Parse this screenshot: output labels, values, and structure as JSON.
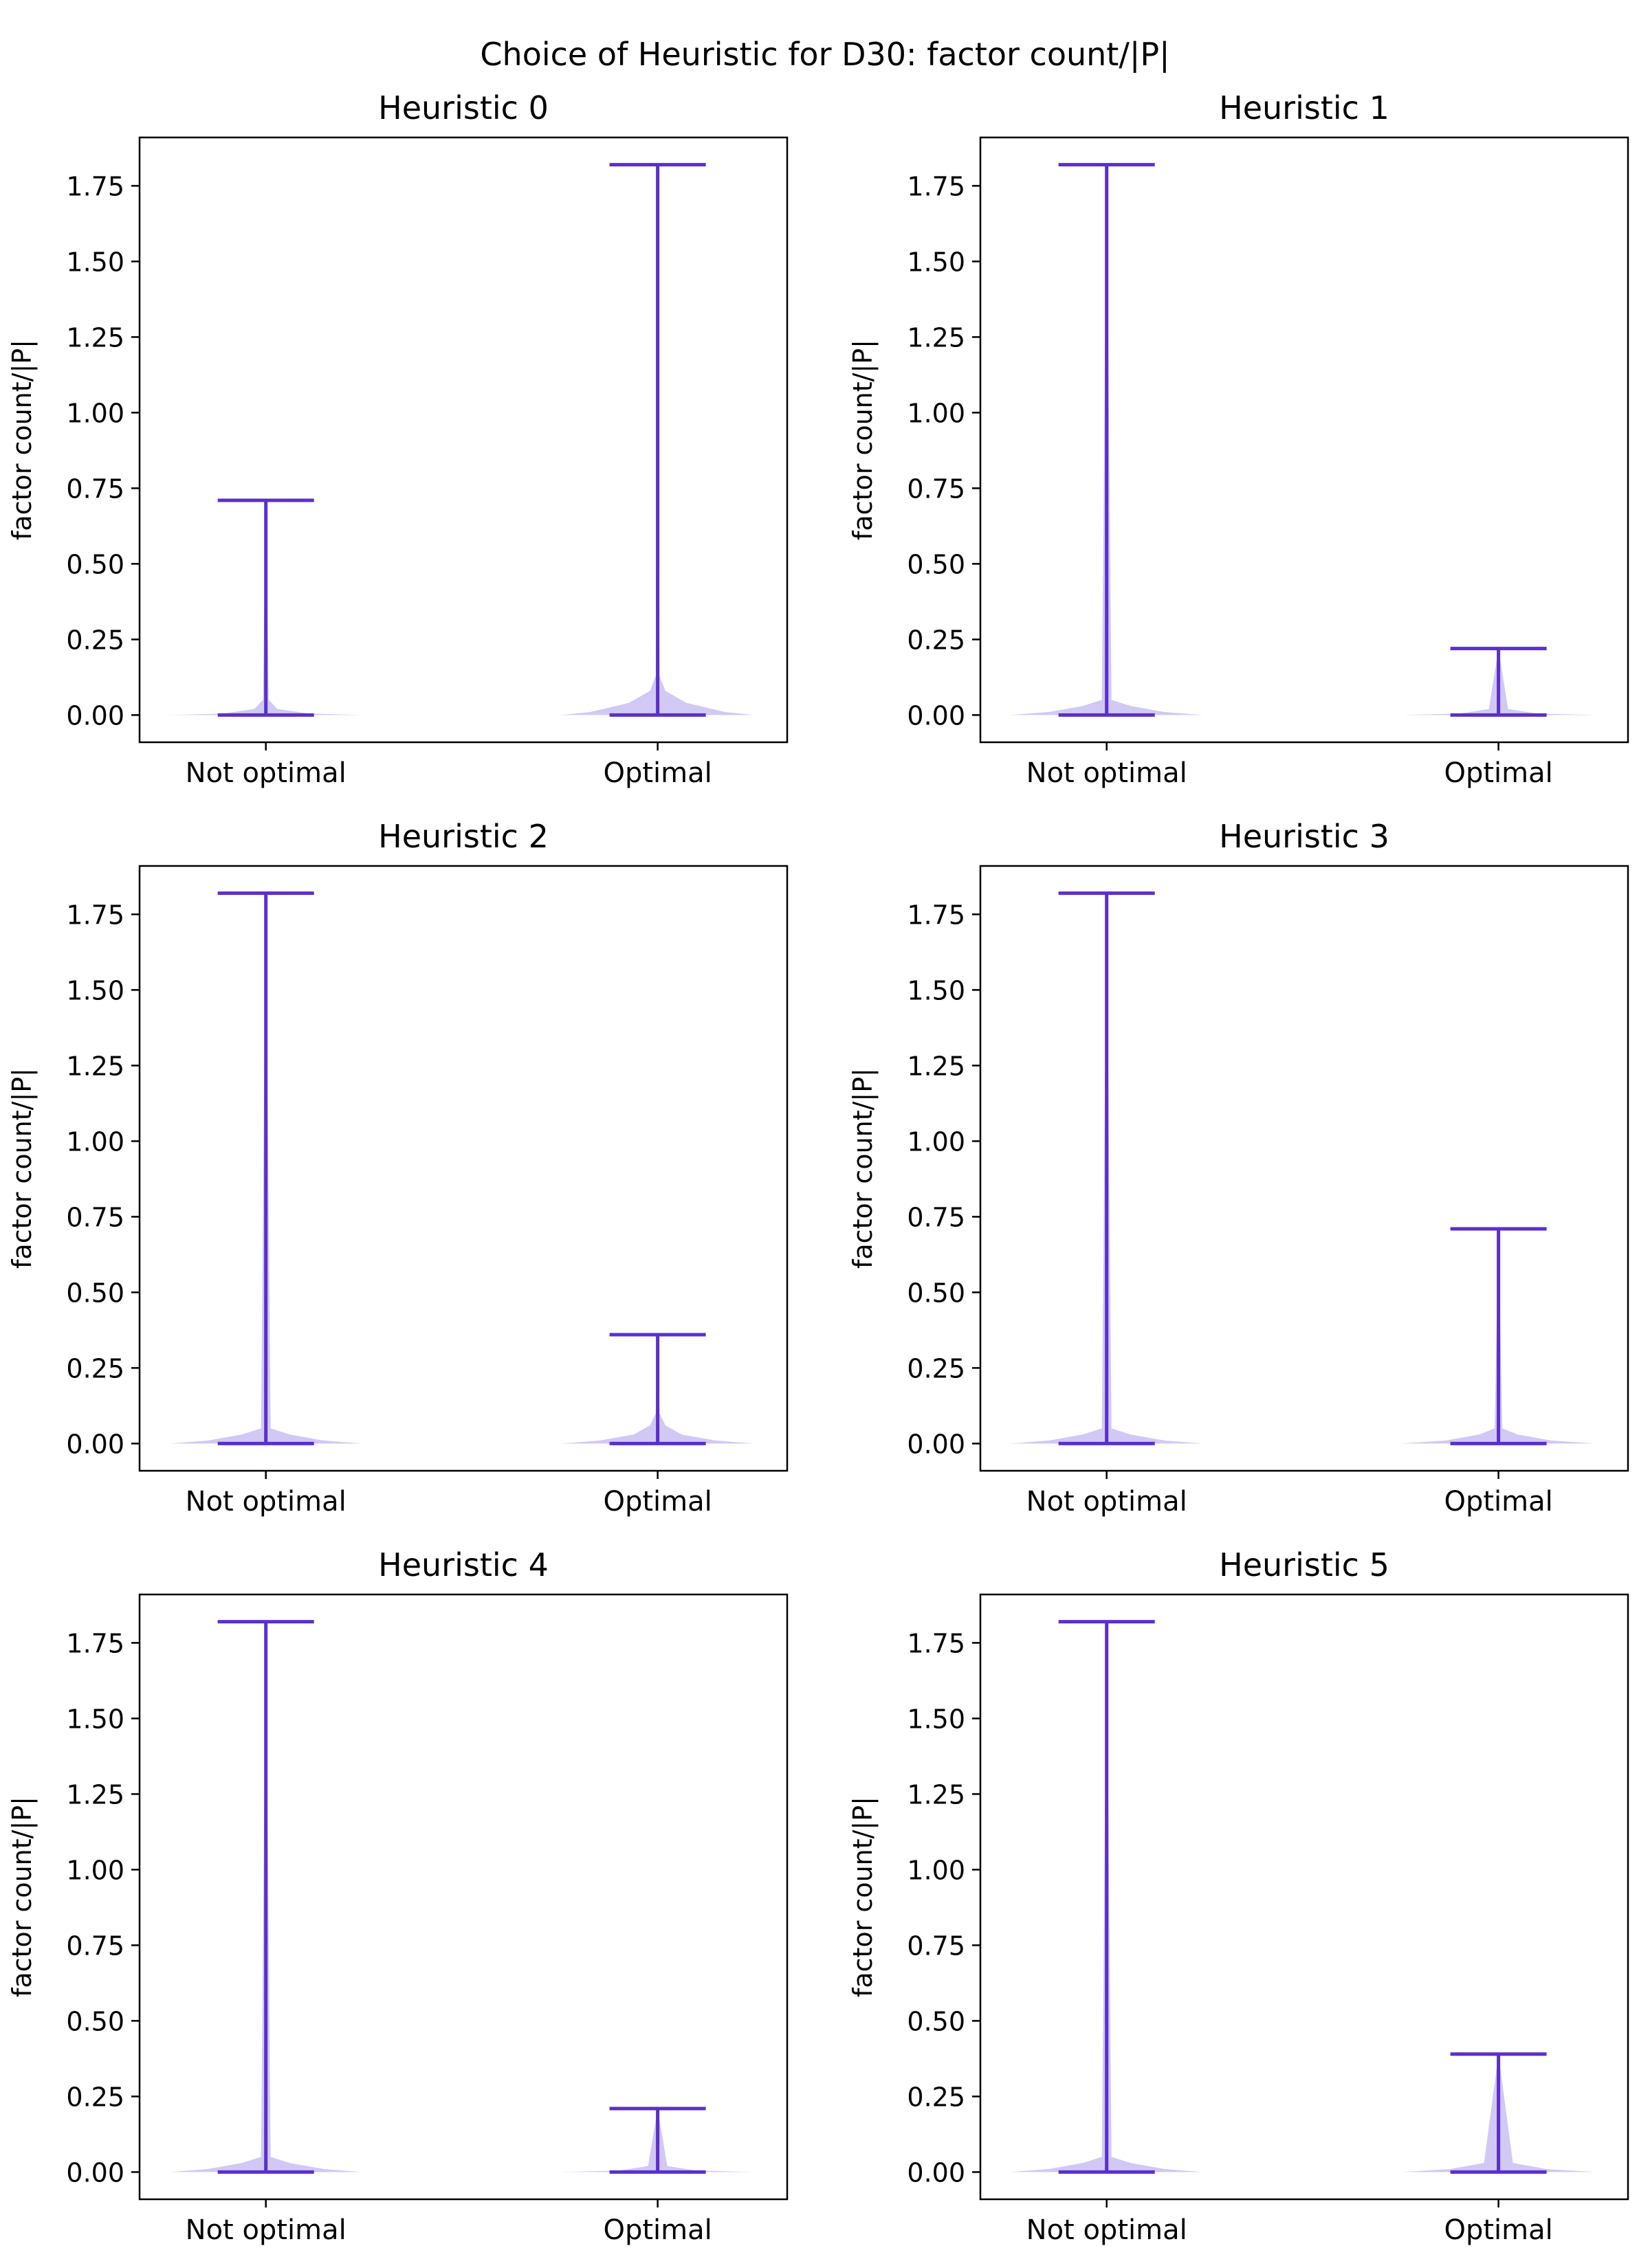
{
  "suptitle": "Choice of Heuristic for  D30: factor count/|P|",
  "colors": {
    "line": "#5a2fcc",
    "fill": "#9b86e6",
    "axis": "#000000"
  },
  "chart_data": [
    {
      "type": "violin",
      "title": "Heuristic 0",
      "ylabel": "factor count/|P|",
      "ylim": [
        -0.09,
        1.91
      ],
      "yticks": [
        "0.00",
        "0.25",
        "0.50",
        "0.75",
        "1.00",
        "1.25",
        "1.50",
        "1.75"
      ],
      "categories": [
        "Not optimal",
        "Optimal"
      ],
      "violins": [
        {
          "min": 0.0,
          "max": 0.71,
          "widths": [
            [
              0,
              1
            ],
            [
              0.005,
              0.45
            ],
            [
              0.02,
              0.12
            ],
            [
              0.05,
              0.03
            ],
            [
              0.71,
              0
            ]
          ]
        },
        {
          "min": 0.0,
          "max": 1.82,
          "widths": [
            [
              0,
              1
            ],
            [
              0.01,
              0.7
            ],
            [
              0.04,
              0.3
            ],
            [
              0.08,
              0.08
            ],
            [
              0.13,
              0.02
            ],
            [
              1.82,
              0
            ]
          ]
        }
      ]
    },
    {
      "type": "violin",
      "title": "Heuristic 1",
      "ylabel": "factor count/|P|",
      "ylim": [
        -0.09,
        1.91
      ],
      "yticks": [
        "0.00",
        "0.25",
        "0.50",
        "0.75",
        "1.00",
        "1.25",
        "1.50",
        "1.75"
      ],
      "categories": [
        "Not optimal",
        "Optimal"
      ],
      "violins": [
        {
          "min": 0.0,
          "max": 1.82,
          "widths": [
            [
              0,
              1
            ],
            [
              0.01,
              0.6
            ],
            [
              0.03,
              0.25
            ],
            [
              0.05,
              0.05
            ],
            [
              1.82,
              0
            ]
          ]
        },
        {
          "min": 0.0,
          "max": 0.22,
          "widths": [
            [
              0,
              1
            ],
            [
              0.005,
              0.4
            ],
            [
              0.02,
              0.1
            ],
            [
              0.22,
              0
            ]
          ]
        }
      ]
    },
    {
      "type": "violin",
      "title": "Heuristic 2",
      "ylabel": "factor count/|P|",
      "ylim": [
        -0.09,
        1.91
      ],
      "yticks": [
        "0.00",
        "0.25",
        "0.50",
        "0.75",
        "1.00",
        "1.25",
        "1.50",
        "1.75"
      ],
      "categories": [
        "Not optimal",
        "Optimal"
      ],
      "violins": [
        {
          "min": 0.0,
          "max": 1.82,
          "widths": [
            [
              0,
              1
            ],
            [
              0.01,
              0.6
            ],
            [
              0.03,
              0.25
            ],
            [
              0.05,
              0.05
            ],
            [
              1.82,
              0
            ]
          ]
        },
        {
          "min": 0.0,
          "max": 0.36,
          "widths": [
            [
              0,
              1
            ],
            [
              0.01,
              0.6
            ],
            [
              0.03,
              0.25
            ],
            [
              0.06,
              0.08
            ],
            [
              0.1,
              0.02
            ],
            [
              0.36,
              0
            ]
          ]
        }
      ]
    },
    {
      "type": "violin",
      "title": "Heuristic 3",
      "ylabel": "factor count/|P|",
      "ylim": [
        -0.09,
        1.91
      ],
      "yticks": [
        "0.00",
        "0.25",
        "0.50",
        "0.75",
        "1.00",
        "1.25",
        "1.50",
        "1.75"
      ],
      "categories": [
        "Not optimal",
        "Optimal"
      ],
      "violins": [
        {
          "min": 0.0,
          "max": 1.82,
          "widths": [
            [
              0,
              1
            ],
            [
              0.01,
              0.6
            ],
            [
              0.03,
              0.25
            ],
            [
              0.05,
              0.05
            ],
            [
              1.82,
              0
            ]
          ]
        },
        {
          "min": 0.0,
          "max": 0.71,
          "widths": [
            [
              0,
              1
            ],
            [
              0.01,
              0.55
            ],
            [
              0.03,
              0.2
            ],
            [
              0.05,
              0.04
            ],
            [
              0.71,
              0
            ]
          ]
        }
      ]
    },
    {
      "type": "violin",
      "title": "Heuristic 4",
      "ylabel": "factor count/|P|",
      "ylim": [
        -0.09,
        1.91
      ],
      "yticks": [
        "0.00",
        "0.25",
        "0.50",
        "0.75",
        "1.00",
        "1.25",
        "1.50",
        "1.75"
      ],
      "categories": [
        "Not optimal",
        "Optimal"
      ],
      "violins": [
        {
          "min": 0.0,
          "max": 1.82,
          "widths": [
            [
              0,
              1
            ],
            [
              0.01,
              0.6
            ],
            [
              0.03,
              0.25
            ],
            [
              0.05,
              0.05
            ],
            [
              1.82,
              0
            ]
          ]
        },
        {
          "min": 0.0,
          "max": 0.21,
          "widths": [
            [
              0,
              1
            ],
            [
              0.005,
              0.4
            ],
            [
              0.02,
              0.1
            ],
            [
              0.21,
              0
            ]
          ]
        }
      ]
    },
    {
      "type": "violin",
      "title": "Heuristic 5",
      "ylabel": "factor count/|P|",
      "ylim": [
        -0.09,
        1.91
      ],
      "yticks": [
        "0.00",
        "0.25",
        "0.50",
        "0.75",
        "1.00",
        "1.25",
        "1.50",
        "1.75"
      ],
      "categories": [
        "Not optimal",
        "Optimal"
      ],
      "violins": [
        {
          "min": 0.0,
          "max": 1.82,
          "widths": [
            [
              0,
              1
            ],
            [
              0.01,
              0.6
            ],
            [
              0.03,
              0.25
            ],
            [
              0.05,
              0.05
            ],
            [
              1.82,
              0
            ]
          ]
        },
        {
          "min": 0.0,
          "max": 0.39,
          "widths": [
            [
              0,
              1
            ],
            [
              0.01,
              0.5
            ],
            [
              0.03,
              0.15
            ],
            [
              0.39,
              0
            ]
          ]
        }
      ]
    }
  ]
}
